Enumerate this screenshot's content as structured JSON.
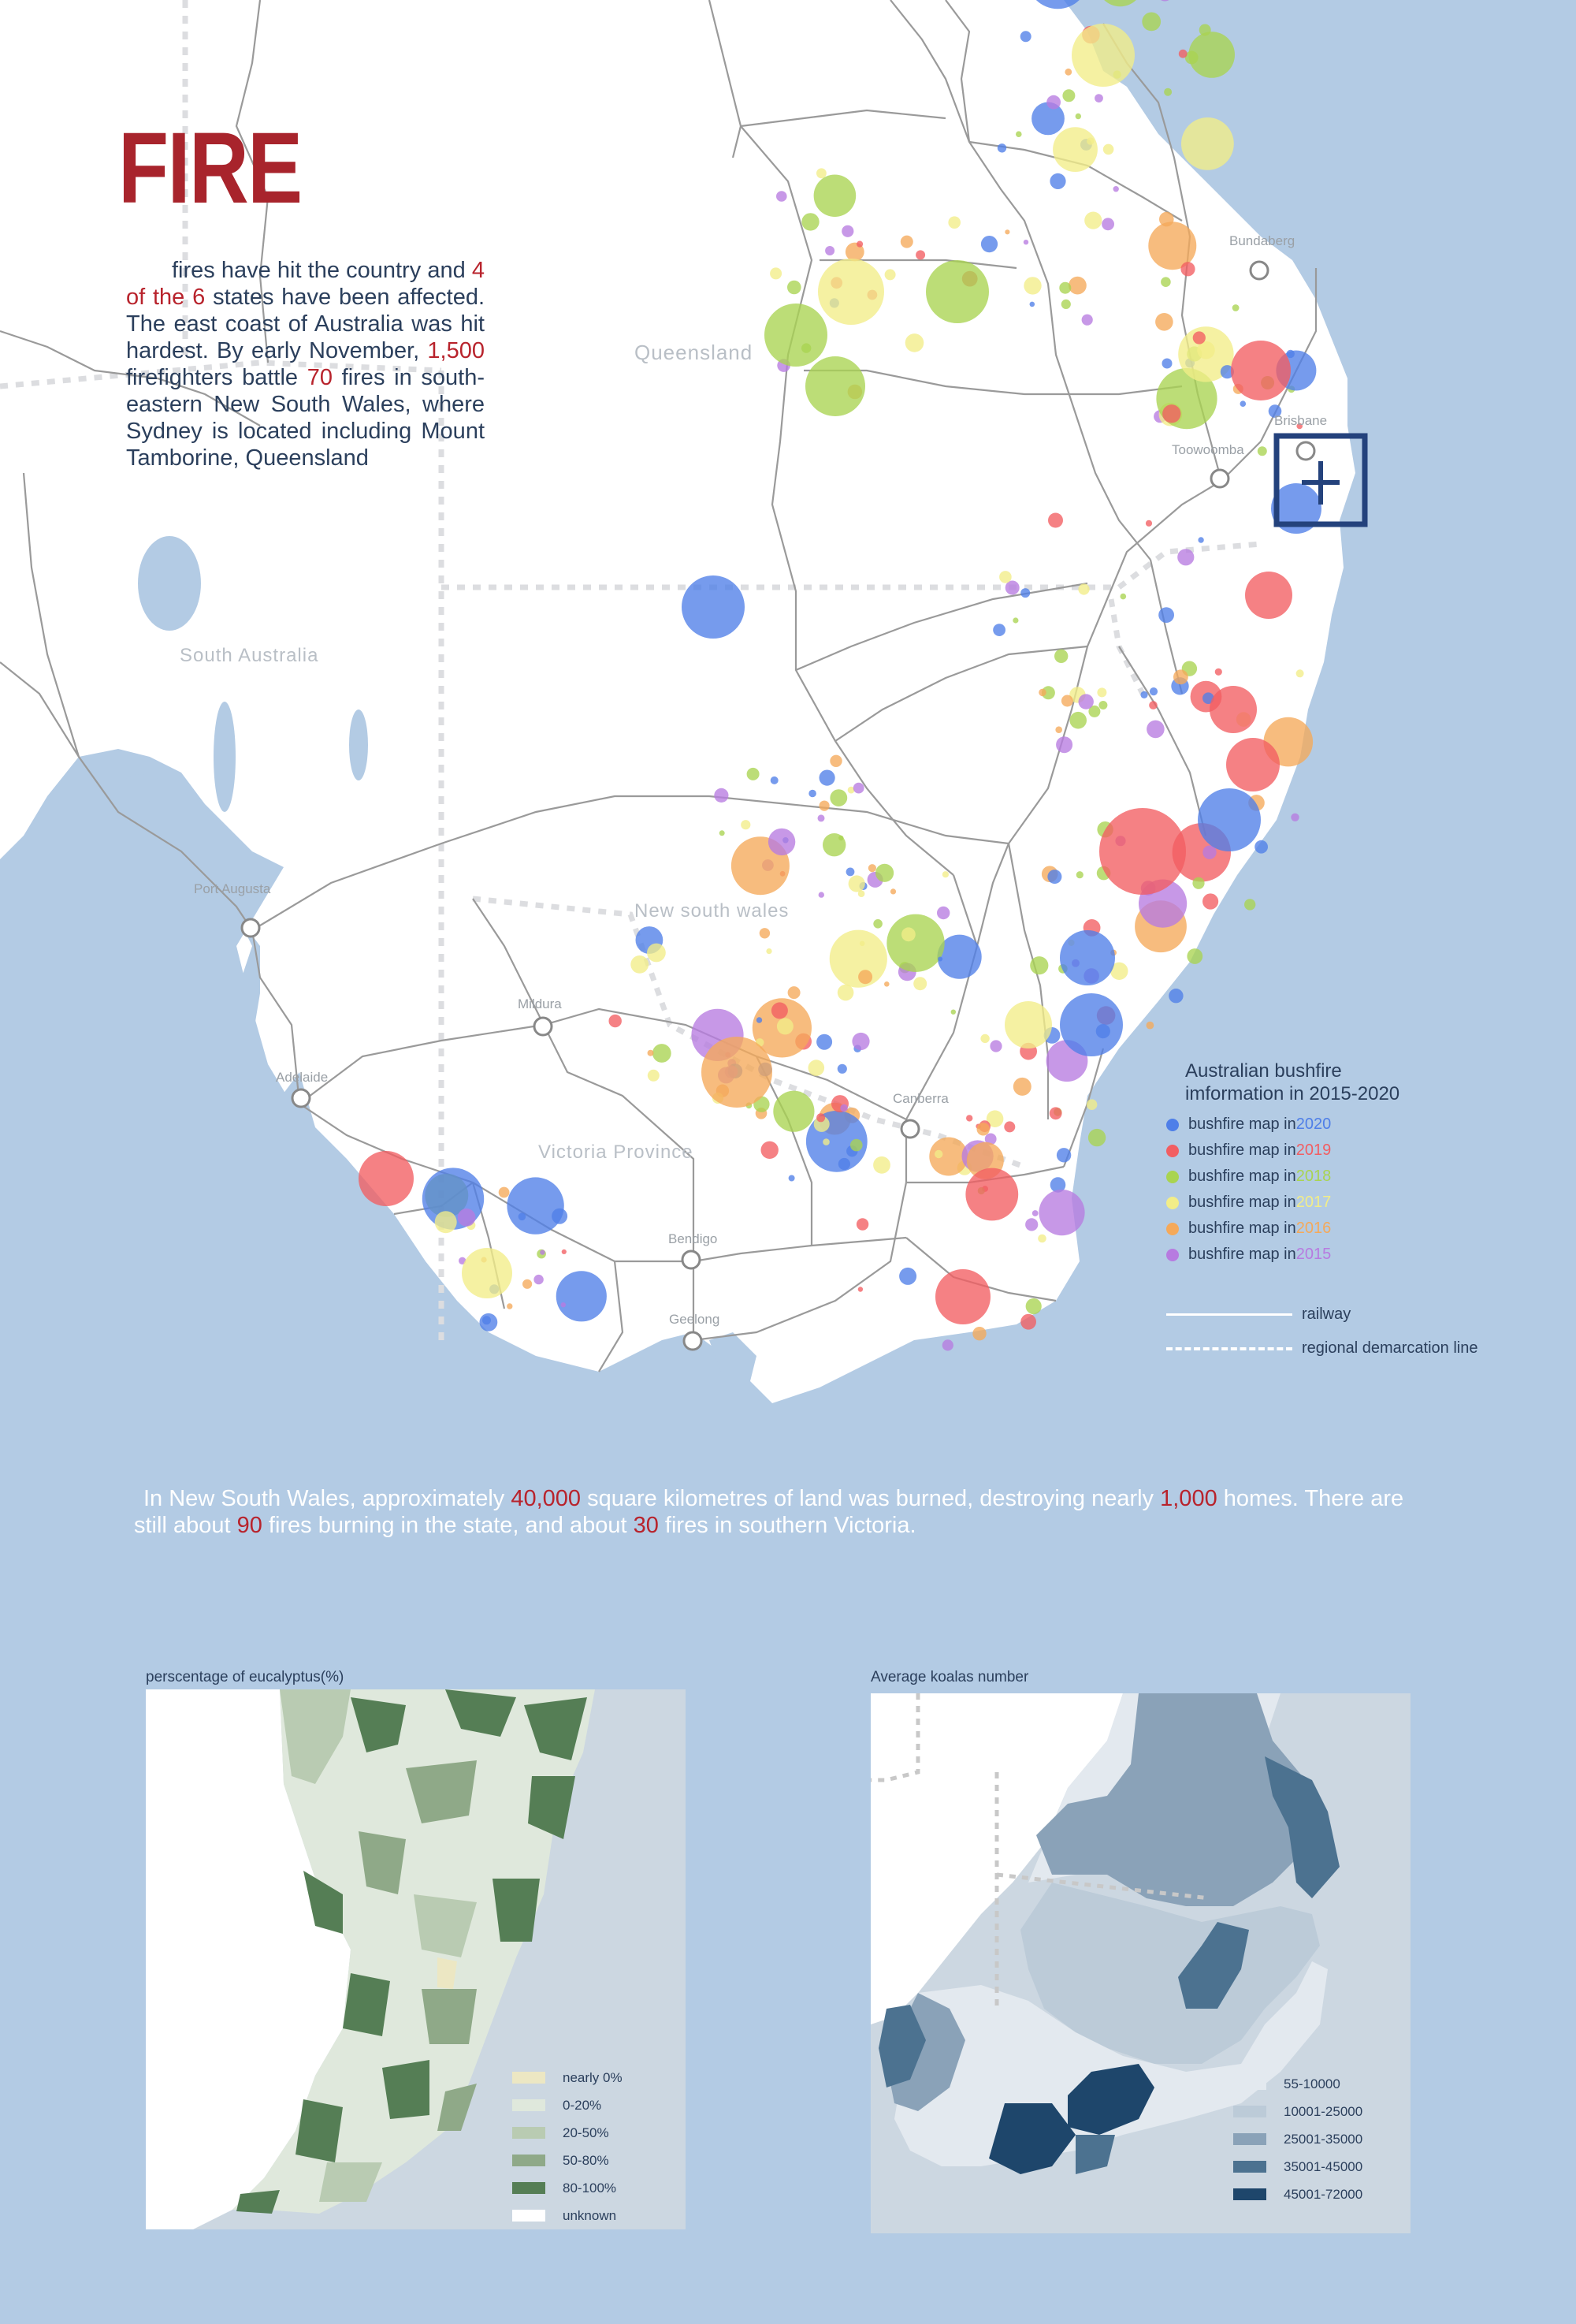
{
  "title": "FIRE",
  "intro": {
    "p1": "fires have hit the country and ",
    "n1": "4 of the 6",
    "p2": " states have been affected. The east coast of Australia was hit hardest. By early November, ",
    "n2": "1,500",
    "p3": " firefighters battle ",
    "n3": "70",
    "p4": " fires in south-eastern New South Wales, where Sydney is located including Mount Tamborine, Queensland"
  },
  "places": {
    "queensland": "Queensland",
    "south_australia": "South Australia",
    "new_south_wales": "New south wales",
    "victoria": "Victoria Province"
  },
  "cities": {
    "bundaberg": "Bundaberg",
    "brisbane": "Brisbane",
    "toowoomba": "Toowoomba",
    "port_augusta": "Port Augusta",
    "mildura": "Mildura",
    "adelaide": "Adelaide",
    "canberra": "Canberra",
    "bendigo": "Bendigo",
    "geelong": "Geelong"
  },
  "legend": {
    "title_line1": "Australian bushfire",
    "title_line2": "imformation in 2015-2020",
    "items": [
      {
        "prefix": "bushfire map in ",
        "year": "2020",
        "color": "#4f7fe8"
      },
      {
        "prefix": "bushfire map in ",
        "year": "2019",
        "color": "#f25e62"
      },
      {
        "prefix": "bushfire map in ",
        "year": "2018",
        "color": "#a9d451"
      },
      {
        "prefix": "bushfire map in ",
        "year": "2017",
        "color": "#f2ed88"
      },
      {
        "prefix": "bushfire map in ",
        "year": "2016",
        "color": "#f5a95a"
      },
      {
        "prefix": "bushfire map in ",
        "year": "2015",
        "color": "#b77be0"
      }
    ],
    "railway": "railway",
    "demarcation": "regional demarcation line"
  },
  "bottom_text": {
    "p1": "In New South Wales, approximately ",
    "n1": "40,000",
    "p2": " square kilometres of land was burned, destroying nearly ",
    "n2": "1,000",
    "p3": " homes. There are still about ",
    "n3": "90",
    "p4": " fires burning in the state, and about ",
    "n4": "30",
    "p5": " fires in southern Victoria."
  },
  "eucalyptus": {
    "label": "perscentage of eucalyptus(%)",
    "legend": [
      {
        "label": "nearly 0%",
        "color": "#ece7c3"
      },
      {
        "label": "0-20%",
        "color": "#dfe8dc"
      },
      {
        "label": "20-50%",
        "color": "#b9cbb2"
      },
      {
        "label": "50-80%",
        "color": "#8fa988"
      },
      {
        "label": "80-100%",
        "color": "#557e55"
      },
      {
        "label": "unknown",
        "color": "#ffffff"
      }
    ]
  },
  "koalas": {
    "label": "Average koalas number",
    "legend": [
      {
        "label": "55-10000",
        "color": "#e3e9ef"
      },
      {
        "label": "10001-25000",
        "color": "#bccbd8"
      },
      {
        "label": "25001-35000",
        "color": "#8aa2b8"
      },
      {
        "label": "35001-45000",
        "color": "#4c7290"
      },
      {
        "label": "45001-72000",
        "color": "#1e466b"
      }
    ]
  }
}
